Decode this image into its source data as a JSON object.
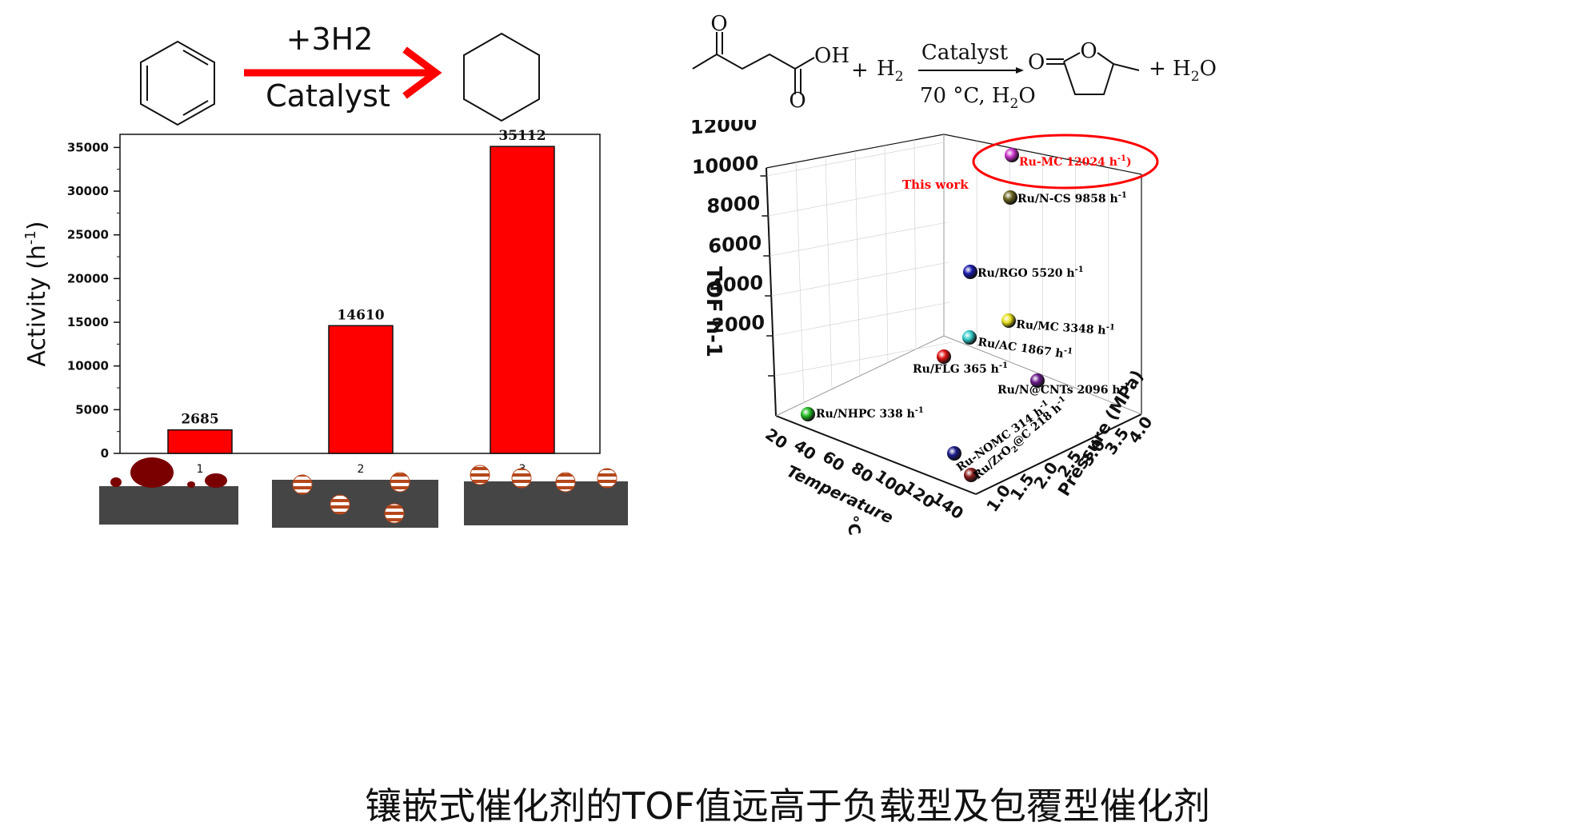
{
  "caption": "镶嵌式催化剂的TOF值远高于负载型及包覆型催化剂",
  "left_scheme": {
    "reagent_top": "+3H2",
    "reagent_bottom": "Catalyst",
    "arrow_color": "#ff0000"
  },
  "right_scheme": {
    "substituent_oh": "OH",
    "o_top": "O",
    "o_bottom": "O",
    "plus1": "+",
    "h2": "H",
    "h2_sub": "2",
    "catalyst": "Catalyst",
    "conditions": "70 °C, H",
    "conditions_sub": "2",
    "conditions_end": "O",
    "ring_o": "O",
    "carbonyl_o": "O",
    "plus2": "+ H",
    "water_sub": "2",
    "water_end": "O"
  },
  "chart_data": [
    {
      "type": "bar",
      "categories": [
        "1",
        "2",
        "3"
      ],
      "values": [
        2685,
        14610,
        35112
      ],
      "value_labels": [
        "2685",
        "14610",
        "35112"
      ],
      "ylabel": "Activity (h",
      "ylabel_sup": "-1",
      "ylabel_end": ")",
      "ylim": [
        0,
        36500
      ],
      "yticks": [
        0,
        5000,
        10000,
        15000,
        20000,
        25000,
        30000,
        35000
      ],
      "ytick_labels": [
        "0",
        "5000",
        "10000",
        "15000",
        "20000",
        "25000",
        "30000",
        "35000"
      ],
      "bar_color": "#ff0000",
      "grid": false,
      "legend": "none"
    },
    {
      "type": "scatter",
      "xlabel": "Temperature",
      "xlabel_unit": "°C",
      "ylabel": "Pressure (MPa)",
      "zlabel": "TOF  h-1",
      "x_tick_labels": [
        "20",
        "40",
        "60",
        "80",
        "100",
        "120",
        "140"
      ],
      "y_tick_labels": [
        "1.0",
        "1.5",
        "2.0",
        "2.5",
        "3.0",
        "3.5",
        "4.0"
      ],
      "z_tick_labels": [
        "2000",
        "4000",
        "6000",
        "8000",
        "10000",
        "12000"
      ],
      "annotation": "This work",
      "annotation_color": "#ff0000",
      "points": [
        {
          "label": "Ru-MC  12024 h",
          "sup": "-1",
          "suffix": ")",
          "tof": 12024,
          "color": "#cc33cc",
          "label_color": "#ff0000"
        },
        {
          "label": "Ru/N-CS  9858 h",
          "sup": "-1",
          "suffix": "",
          "tof": 9858,
          "color": "#6b6520",
          "label_color": "#000000"
        },
        {
          "label": "Ru/RGO  5520 h",
          "sup": "-1",
          "suffix": "",
          "tof": 5520,
          "color": "#1a1aaa",
          "label_color": "#000000"
        },
        {
          "label": "Ru/MC  3348 h",
          "sup": "-1",
          "suffix": "",
          "tof": 3348,
          "color": "#e8e020",
          "label_color": "#000000"
        },
        {
          "label": "Ru/AC  1867 h",
          "sup": "-1",
          "suffix": "",
          "tof": 1867,
          "color": "#33cccc",
          "label_color": "#000000"
        },
        {
          "label": "Ru/FLG  365 h",
          "sup": "-1",
          "suffix": "",
          "tof": 365,
          "color": "#dd1111",
          "label_color": "#000000"
        },
        {
          "label": "Ru/N@CNTs  2096 h",
          "sup": "-1",
          "suffix": "",
          "tof": 2096,
          "color": "#6a1a8a",
          "label_color": "#000000"
        },
        {
          "label": "Ru/NHPC  338 h",
          "sup": "-1",
          "suffix": "",
          "tof": 338,
          "color": "#22bb22",
          "label_color": "#000000"
        },
        {
          "label": "Ru-NOMC  314 h",
          "sup": "-1",
          "suffix": "",
          "tof": 314,
          "color": "#1a1a88",
          "label_color": "#000000"
        },
        {
          "label": "Ru/ZrO",
          "sub": "2",
          "label2": "@C  218 h",
          "sup": "-1",
          "suffix": "",
          "tof": 218,
          "color": "#8a1a1a",
          "label_color": "#000000"
        }
      ],
      "highlight_color": "#ff0000"
    }
  ]
}
